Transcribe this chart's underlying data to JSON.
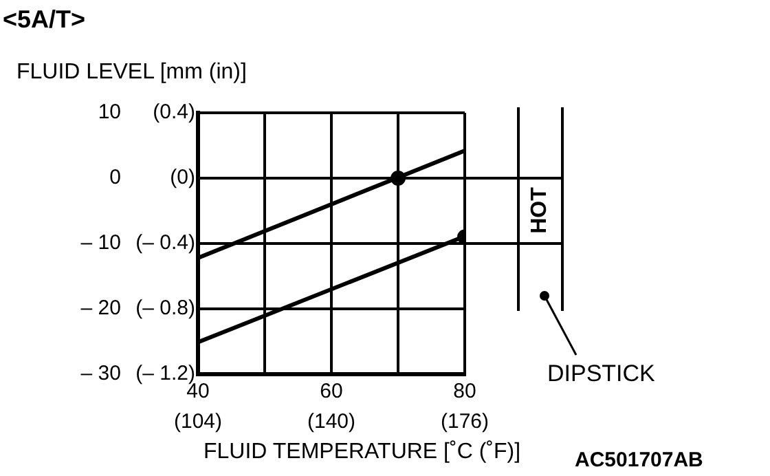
{
  "chart_data": {
    "type": "line",
    "title": "<5A/T>",
    "ylabel": "FLUID LEVEL [mm (in)]",
    "xlabel": "FLUID TEMPERATURE [˚C (˚F)]",
    "annotations": [
      "DIPSTICK",
      "AC501707AB",
      "HOT"
    ],
    "xlim": [
      40,
      80
    ],
    "xticks": [
      40,
      {
        "value": 50,
        "label": null
      },
      60,
      {
        "value": 70,
        "label": null
      },
      80
    ],
    "x2lim": [
      104,
      176
    ],
    "x2ticks": [
      {
        "value": 104,
        "label": "(104)"
      },
      {
        "value": 140,
        "label": "(140)"
      },
      {
        "value": 176,
        "label": "(176)"
      }
    ],
    "ylim": [
      -30,
      10
    ],
    "yticks": [
      {
        "value": -30,
        "label": "– 30"
      },
      {
        "value": -20,
        "label": "– 20"
      },
      {
        "value": -10,
        "label": "– 10"
      },
      0,
      10
    ],
    "y2lim": [
      -1.2,
      0.4
    ],
    "y2ticks": [
      {
        "value": -1.2,
        "label": "(– 1.2)"
      },
      {
        "value": -0.8,
        "label": "(– 0.8)"
      },
      {
        "value": -0.4,
        "label": "(– 0.4)"
      },
      {
        "value": 0,
        "label": "(0)"
      },
      {
        "value": 0.4,
        "label": "(0.4)"
      }
    ],
    "grid": true,
    "legend": false,
    "line_style": "solid",
    "series": [
      {
        "type": "line",
        "color": "#000000",
        "x": [
          40,
          80
        ],
        "values": [
          -12.2,
          4.2
        ],
        "marker": "none"
      },
      {
        "type": "line",
        "color": "#000000",
        "x": [
          40,
          80
        ],
        "values": [
          -25.1,
          -8.9
        ],
        "marker": "none"
      },
      {
        "type": "scatter",
        "color": "#000000",
        "x": [
          70,
          80
        ],
        "values": [
          0,
          -9
        ],
        "marker": "circle"
      }
    ]
  }
}
